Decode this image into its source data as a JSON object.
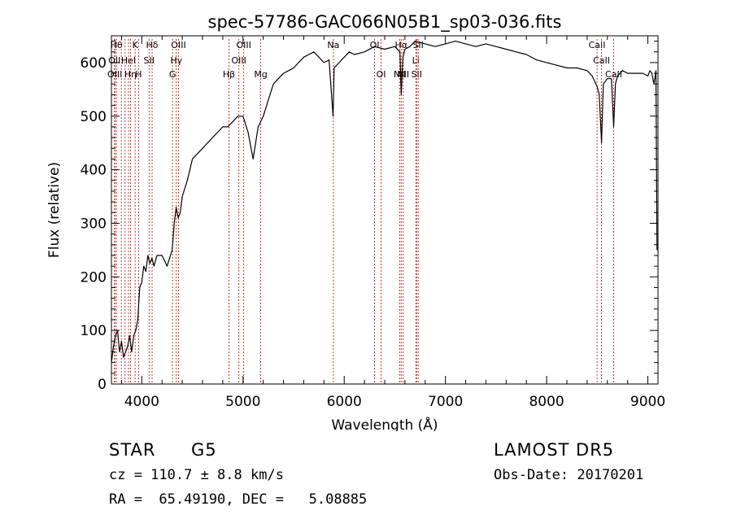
{
  "chart_data": {
    "type": "line",
    "title": "spec-57786-GAC066N05B1_sp03-036.fits",
    "xlabel": "Wavelength (Å)",
    "ylabel": "Flux (relative)",
    "xlim": [
      3700,
      9100
    ],
    "ylim": [
      0,
      650
    ],
    "xticks": [
      4000,
      5000,
      6000,
      7000,
      8000,
      9000
    ],
    "yticks": [
      0,
      100,
      200,
      300,
      400,
      500,
      600
    ],
    "grid": false,
    "line_color": "#000000",
    "marker_color": "#cc0000",
    "series": [
      {
        "x": [
          3700,
          3720,
          3740,
          3760,
          3780,
          3800,
          3820,
          3840,
          3860,
          3880,
          3900,
          3920,
          3940,
          3960,
          3980,
          4000,
          4020,
          4040,
          4060,
          4080,
          4100,
          4120,
          4150,
          4200,
          4250,
          4300,
          4320,
          4340,
          4360,
          4380,
          4400,
          4450,
          4500,
          4550,
          4600,
          4650,
          4700,
          4750,
          4800,
          4850,
          4900,
          4950,
          5000,
          5050,
          5100,
          5150,
          5200,
          5250,
          5300,
          5350,
          5400,
          5450,
          5500,
          5550,
          5600,
          5650,
          5700,
          5750,
          5800,
          5850,
          5890,
          5900,
          5950,
          6000,
          6050,
          6100,
          6200,
          6300,
          6400,
          6500,
          6550,
          6563,
          6580,
          6600,
          6650,
          6700,
          6800,
          6900,
          7000,
          7100,
          7200,
          7300,
          7400,
          7500,
          7600,
          7700,
          7800,
          7900,
          8000,
          8100,
          8200,
          8300,
          8400,
          8450,
          8500,
          8520,
          8542,
          8560,
          8600,
          8640,
          8662,
          8680,
          8700,
          8750,
          8800,
          8850,
          8900,
          8950,
          9000,
          9020,
          9040,
          9060,
          9080,
          9090
        ],
        "y": [
          40,
          70,
          90,
          100,
          60,
          80,
          50,
          60,
          70,
          90,
          60,
          90,
          100,
          120,
          180,
          190,
          220,
          210,
          240,
          225,
          235,
          220,
          240,
          240,
          220,
          250,
          300,
          330,
          310,
          320,
          350,
          380,
          420,
          430,
          440,
          450,
          460,
          470,
          480,
          480,
          490,
          500,
          500,
          470,
          420,
          480,
          500,
          530,
          560,
          570,
          580,
          585,
          590,
          600,
          610,
          615,
          620,
          610,
          600,
          605,
          500,
          590,
          600,
          610,
          620,
          615,
          620,
          630,
          625,
          630,
          620,
          540,
          610,
          625,
          630,
          640,
          635,
          630,
          635,
          640,
          635,
          630,
          635,
          630,
          625,
          620,
          615,
          605,
          600,
          595,
          590,
          590,
          585,
          575,
          555,
          540,
          450,
          560,
          570,
          570,
          480,
          560,
          575,
          585,
          580,
          580,
          580,
          580,
          575,
          585,
          580,
          560,
          585,
          250
        ]
      }
    ],
    "lines": [
      {
        "x": 3750,
        "label": "Hθ",
        "row": 0
      },
      {
        "x": 3730,
        "label": "OII",
        "row": 1
      },
      {
        "x": 3734,
        "label": "OIII",
        "row": 2
      },
      {
        "x": 3798,
        "label": "",
        "row": -1
      },
      {
        "x": 3835,
        "label": "",
        "row": -1
      },
      {
        "x": 3869,
        "label": "HeI",
        "row": 1
      },
      {
        "x": 3889,
        "label": "Hη",
        "row": 2
      },
      {
        "x": 3934,
        "label": "K",
        "row": 0
      },
      {
        "x": 3968,
        "label": "H",
        "row": 2
      },
      {
        "x": 4072,
        "label": "SII",
        "row": 1
      },
      {
        "x": 4102,
        "label": "Hδ",
        "row": 0
      },
      {
        "x": 4304,
        "label": "G",
        "row": 2
      },
      {
        "x": 4341,
        "label": "Hγ",
        "row": 1
      },
      {
        "x": 4363,
        "label": "OIII",
        "row": 0
      },
      {
        "x": 4861,
        "label": "Hβ",
        "row": 2
      },
      {
        "x": 4959,
        "label": "OIII",
        "row": 1
      },
      {
        "x": 5007,
        "label": "OIII",
        "row": 0
      },
      {
        "x": 5175,
        "label": "Mg",
        "row": 2
      },
      {
        "x": 5893,
        "label": "Na",
        "row": 0
      },
      {
        "x": 6300,
        "label": "OI",
        "row": 0
      },
      {
        "x": 6364,
        "label": "OI",
        "row": 2
      },
      {
        "x": 6548,
        "label": "NII",
        "row": 2
      },
      {
        "x": 6563,
        "label": "Hα",
        "row": 0
      },
      {
        "x": 6583,
        "label": "NII",
        "row": 2
      },
      {
        "x": 6707,
        "label": "Li",
        "row": 1
      },
      {
        "x": 6716,
        "label": "SII",
        "row": 2
      },
      {
        "x": 6731,
        "label": "SII",
        "row": 0
      },
      {
        "x": 8498,
        "label": "CaII",
        "row": 0
      },
      {
        "x": 8542,
        "label": "CaII",
        "row": 1
      },
      {
        "x": 8662,
        "label": "CaII",
        "row": 2
      }
    ]
  },
  "info": {
    "object_class": "STAR",
    "subclass": "G5",
    "survey": "LAMOST DR5",
    "cz": "cz = 110.7 ± 8.8 km/s",
    "obs_date": "Obs-Date: 20170201",
    "coords": "RA =  65.49190, DEC =   5.08885"
  }
}
